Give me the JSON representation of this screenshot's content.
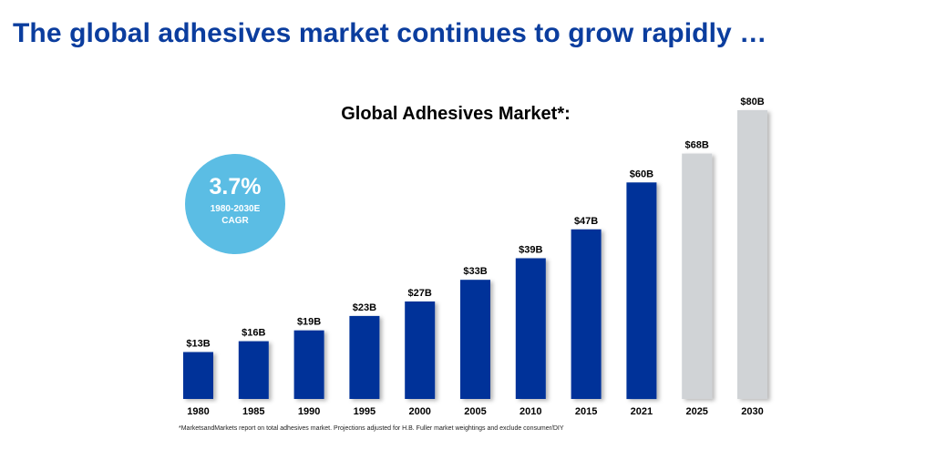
{
  "page_title": "The global adhesives market continues to grow rapidly …",
  "cagr": {
    "value": "3.7%",
    "period": "1980-2030E",
    "label": "CAGR"
  },
  "footnote": "*MarketsandMarkets report on total adhesives market. Projections adjusted for H.B. Fuller market weightings and exclude consumer/DIY",
  "colors": {
    "title": "#0b3d9e",
    "actual_bar": "#003399",
    "projected_bar": "#d0d3d6",
    "badge": "#5bbde4"
  },
  "chart_data": {
    "type": "bar",
    "title": "Global Adhesives Market*:",
    "xlabel": "",
    "ylabel": "",
    "ylim": [
      0,
      80
    ],
    "categories": [
      "1980",
      "1985",
      "1990",
      "1995",
      "2000",
      "2005",
      "2010",
      "2015",
      "2021",
      "2025",
      "2030"
    ],
    "values": [
      13,
      16,
      19,
      23,
      27,
      33,
      39,
      47,
      60,
      68,
      80
    ],
    "labels": [
      "$13B",
      "$16B",
      "$19B",
      "$23B",
      "$27B",
      "$33B",
      "$39B",
      "$47B",
      "$60B",
      "$68B",
      "$80B"
    ],
    "projected": [
      false,
      false,
      false,
      false,
      false,
      false,
      false,
      false,
      false,
      true,
      true
    ],
    "grid": false,
    "legend": "none"
  }
}
